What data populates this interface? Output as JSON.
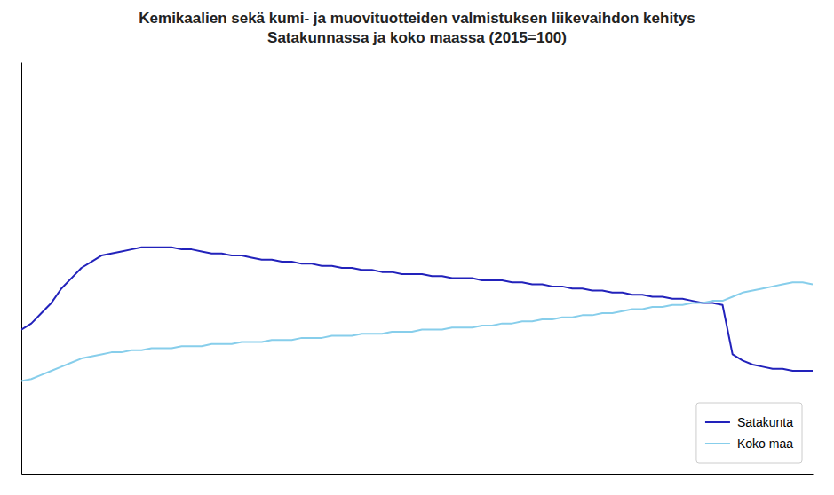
{
  "chart_data": {
    "type": "line",
    "title": "Kemikaalien sekä kumi- ja muovituotteiden valmistuksen liikevaihdon kehitys\nSatakunnassa ja koko maassa (2015=100)",
    "x": [
      0,
      1,
      2,
      3,
      4,
      5,
      6,
      7,
      8,
      9,
      10,
      11,
      12,
      13,
      14,
      15,
      16,
      17,
      18,
      19,
      20,
      21,
      22,
      23,
      24,
      25,
      26,
      27,
      28,
      29,
      30,
      31,
      32,
      33,
      34,
      35,
      36,
      37,
      38,
      39,
      40,
      41,
      42,
      43,
      44,
      45,
      46,
      47,
      48,
      49,
      50,
      51,
      52,
      53,
      54,
      55,
      56,
      57,
      58,
      59,
      60,
      61,
      62,
      63,
      64,
      65,
      66,
      67,
      68,
      69,
      70,
      71,
      72,
      73,
      74,
      75,
      76,
      77,
      78,
      79
    ],
    "series": [
      {
        "name": "Satakunta",
        "color": "#2222bb",
        "values": [
          130,
          133,
          138,
          143,
          150,
          155,
          160,
          163,
          166,
          167,
          168,
          169,
          170,
          170,
          170,
          170,
          169,
          169,
          168,
          167,
          167,
          166,
          166,
          165,
          164,
          164,
          163,
          163,
          162,
          162,
          161,
          161,
          160,
          160,
          159,
          159,
          158,
          158,
          157,
          157,
          157,
          156,
          156,
          155,
          155,
          155,
          154,
          154,
          154,
          153,
          153,
          152,
          152,
          151,
          151,
          150,
          150,
          149,
          149,
          148,
          148,
          147,
          147,
          146,
          146,
          145,
          145,
          144,
          143,
          143,
          142,
          118,
          115,
          113,
          112,
          111,
          111,
          110,
          110,
          110
        ]
      },
      {
        "name": "Koko maa",
        "color": "#87ceeb",
        "values": [
          105,
          106,
          108,
          110,
          112,
          114,
          116,
          117,
          118,
          119,
          119,
          120,
          120,
          121,
          121,
          121,
          122,
          122,
          122,
          123,
          123,
          123,
          124,
          124,
          124,
          125,
          125,
          125,
          126,
          126,
          126,
          127,
          127,
          127,
          128,
          128,
          128,
          129,
          129,
          129,
          130,
          130,
          130,
          131,
          131,
          131,
          132,
          132,
          133,
          133,
          134,
          134,
          135,
          135,
          136,
          136,
          137,
          137,
          138,
          138,
          139,
          140,
          140,
          141,
          141,
          142,
          142,
          143,
          143,
          144,
          144,
          146,
          148,
          149,
          150,
          151,
          152,
          153,
          153,
          152
        ]
      }
    ],
    "xlim": [
      0,
      79
    ],
    "ylim": [
      60,
      260
    ],
    "grid": false,
    "legend": "lower right",
    "tick_labels": false
  }
}
